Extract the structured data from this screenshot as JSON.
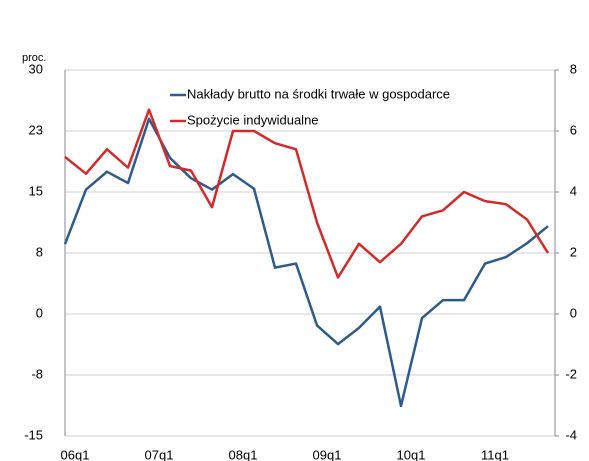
{
  "chart_data": {
    "type": "line",
    "y_label": "proc.",
    "categories": [
      "06q1",
      null,
      null,
      null,
      "07q1",
      null,
      null,
      null,
      "08q1",
      null,
      null,
      null,
      "09q1",
      null,
      null,
      null,
      "10q1",
      null,
      null,
      null,
      "11q1",
      null,
      null,
      null
    ],
    "series": [
      {
        "name": "Nakłady brutto na środki trwałe w gospodarce",
        "color": "#2e5a8c",
        "values": [
          8.6,
          15.3,
          17.5,
          16.1,
          24.0,
          19.2,
          16.7,
          15.3,
          17.2,
          15.4,
          5.7,
          6.2,
          -1.4,
          -3.7,
          -1.7,
          0.9,
          -11.3,
          -0.5,
          1.7,
          1.7,
          6.2,
          7.0,
          8.7,
          10.8
        ]
      },
      {
        "name": "Spożycie indywidualne",
        "color": "#d42a2a",
        "axis": "y2",
        "values": [
          5.15,
          4.6,
          5.4,
          4.8,
          6.7,
          4.85,
          4.7,
          3.5,
          6.0,
          6.0,
          5.6,
          5.4,
          3.0,
          1.2,
          2.3,
          1.7,
          2.3,
          3.2,
          3.4,
          4.0,
          3.7,
          3.6,
          3.1,
          2.0
        ]
      }
    ],
    "ylim": [
      -15,
      30
    ],
    "yticks": [
      30,
      {
        "value": 22.5,
        "label": "23"
      },
      15,
      {
        "value": 7.5,
        "label": "8"
      },
      0,
      {
        "value": -7.5,
        "label": "-8"
      },
      -15
    ],
    "y2lim": [
      -4,
      8
    ],
    "y2ticks": [
      8,
      6,
      4,
      2,
      0,
      -2,
      -4
    ],
    "grid": true,
    "legend": "top"
  }
}
